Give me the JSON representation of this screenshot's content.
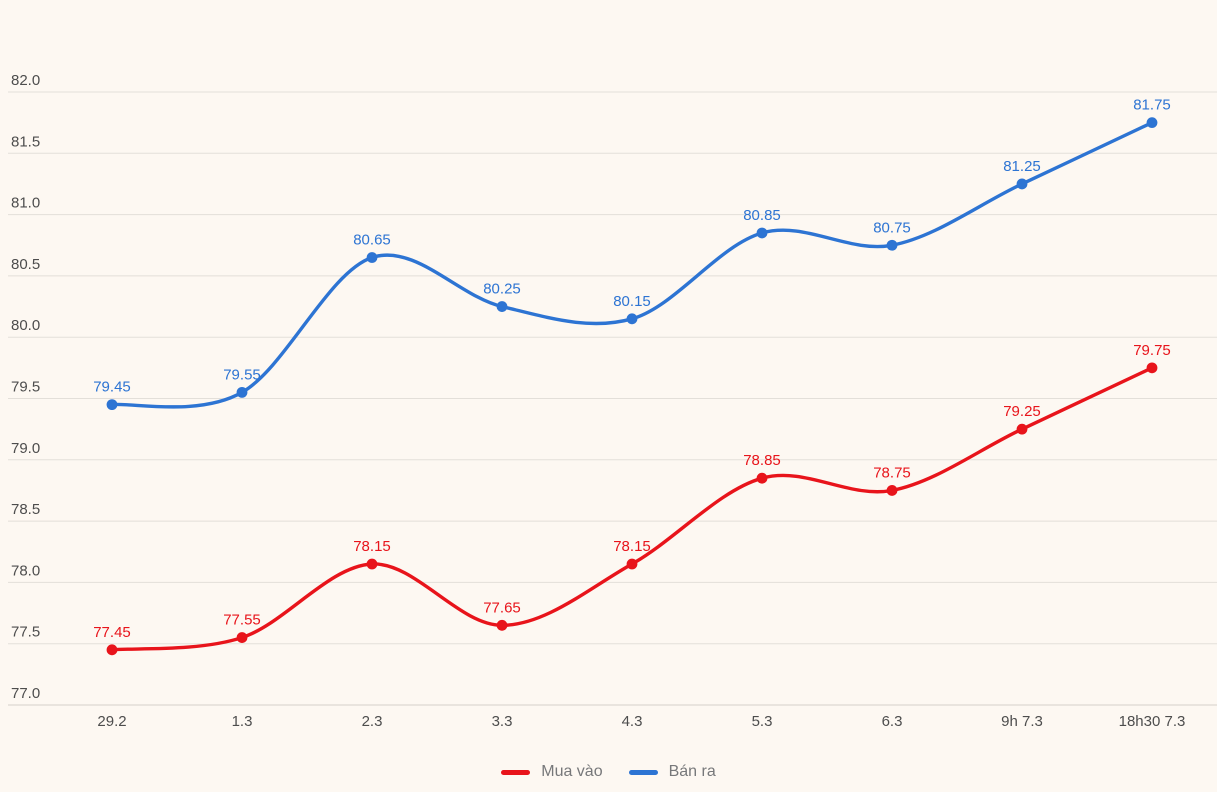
{
  "chart": {
    "background_color": "#fdf8f2",
    "grid_color": "#e3dfd9",
    "axis_line_color": "#d5d1cb",
    "tick_label_color": "#4d4d4d",
    "legend_text_color": "#77787a"
  },
  "chart_data": {
    "type": "line",
    "title": "",
    "xlabel": "",
    "ylabel": "",
    "categories": [
      "29.2",
      "1.3",
      "2.3",
      "3.3",
      "4.3",
      "5.3",
      "6.3",
      "9h 7.3",
      "18h30 7.3"
    ],
    "series": [
      {
        "name": "Mua vào",
        "color": "#e8141b",
        "values": [
          77.45,
          77.55,
          78.15,
          77.65,
          78.15,
          78.85,
          78.75,
          79.25,
          79.75
        ]
      },
      {
        "name": "Bán ra",
        "color": "#2d74d3",
        "values": [
          79.45,
          79.55,
          80.65,
          80.25,
          80.15,
          80.85,
          80.75,
          81.25,
          81.75
        ]
      }
    ],
    "ylim": [
      77.0,
      82.0
    ],
    "ytick_step": 0.5,
    "ytick_decimals": 1,
    "datalabel_decimals": 2,
    "grid": true,
    "line_shape": "spline",
    "markers": true,
    "legend_position": "bottom"
  }
}
